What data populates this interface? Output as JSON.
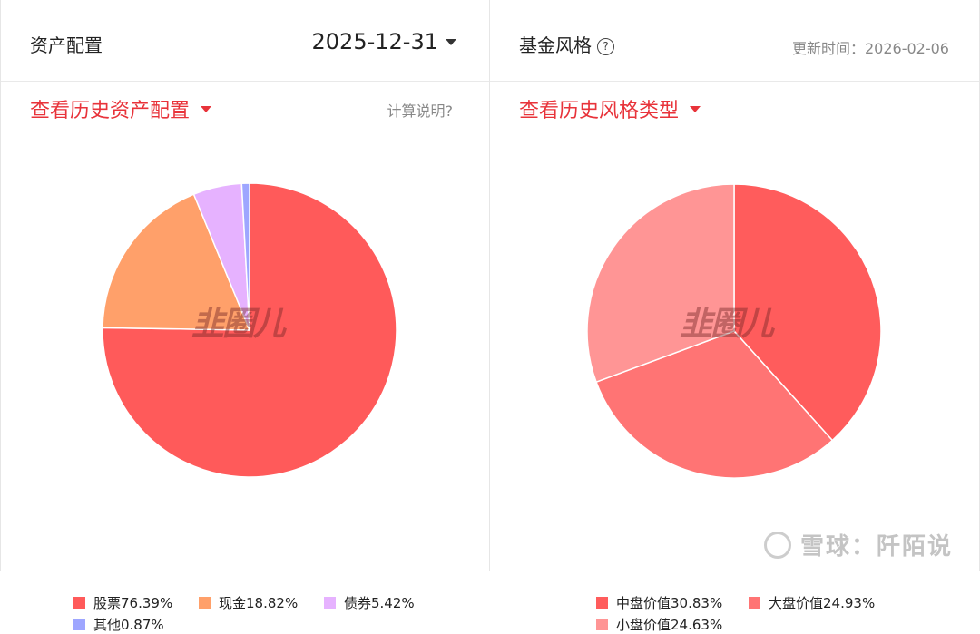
{
  "asset_panel": {
    "title": "资产配置",
    "date": "2025-12-31",
    "history_link": "查看历史资产配置",
    "calc_note": "计算说明?",
    "watermark": "韭圈儿"
  },
  "style_panel": {
    "title": "基金风格",
    "help_icon": "?",
    "updated": "更新时间：2026-02-06",
    "history_link": "查看历史风格类型",
    "watermark": "韭圈儿"
  },
  "site_watermark": "雪球：阡陌说",
  "chart_data": [
    {
      "type": "pie",
      "name": "资产配置",
      "slices": [
        {
          "label": "股票",
          "value": 76.39,
          "display": "股票76.39%",
          "color": "#ff5a5a"
        },
        {
          "label": "现金",
          "value": 18.82,
          "display": "现金18.82%",
          "color": "#ffa06a"
        },
        {
          "label": "债券",
          "value": 5.42,
          "display": "债券5.42%",
          "color": "#e6b2ff"
        },
        {
          "label": "其他",
          "value": 0.87,
          "display": "其他0.87%",
          "color": "#9ea6ff"
        }
      ]
    },
    {
      "type": "pie",
      "name": "基金风格",
      "slices": [
        {
          "label": "中盘价值",
          "value": 30.83,
          "display": "中盘价值30.83%",
          "color": "#ff5c5c"
        },
        {
          "label": "大盘价值",
          "value": 24.93,
          "display": "大盘价值24.93%",
          "color": "#ff7474"
        },
        {
          "label": "小盘价值",
          "value": 24.63,
          "display": "小盘价值24.63%",
          "color": "#ff9595"
        }
      ]
    }
  ]
}
